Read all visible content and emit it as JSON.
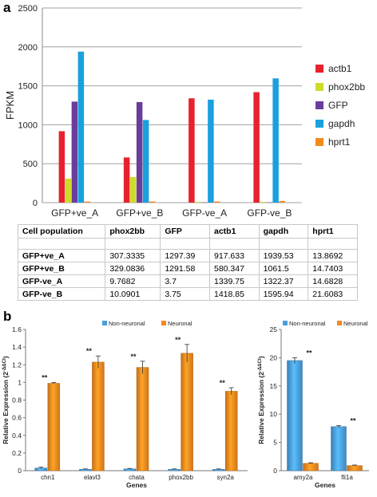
{
  "panel_a_label": "a",
  "panel_b_label": "b",
  "table": {
    "headers": [
      "Cell population",
      "phox2bb",
      "GFP",
      "actb1",
      "gapdh",
      "hprt1"
    ],
    "rows": [
      [
        "GFP+ve_A",
        "307.3335",
        "1297.39",
        "917.633",
        "1939.53",
        "13.8692"
      ],
      [
        "GFP+ve_B",
        "329.0836",
        "1291.58",
        "580.347",
        "1061.5",
        "14.7403"
      ],
      [
        "GFP-ve_A",
        "9.7682",
        "3.7",
        "1339.75",
        "1322.37",
        "14.6828"
      ],
      [
        "GFP-ve_B",
        "10.0901",
        "3.75",
        "1418.85",
        "1595.94",
        "21.6083"
      ]
    ]
  },
  "colors": {
    "actb1": "#e8212e",
    "phox2bb": "#cddc2a",
    "GFP": "#6a3d9a",
    "gapdh": "#1aa0dc",
    "hprt1": "#f5891f",
    "non_neuronal": "#4a9ee0",
    "neuronal": "#f5891f"
  },
  "chart_data": [
    {
      "type": "bar",
      "categories": [
        "GFP+ve_A",
        "GFP+ve_B",
        "GFP-ve_A",
        "GFP-ve_B"
      ],
      "series": [
        {
          "name": "actb1",
          "values": [
            917.633,
            580.347,
            1339.75,
            1418.85
          ]
        },
        {
          "name": "phox2bb",
          "values": [
            307.3335,
            329.0836,
            9.7682,
            10.0901
          ]
        },
        {
          "name": "GFP",
          "values": [
            1297.39,
            1291.58,
            3.7,
            3.75
          ]
        },
        {
          "name": "gapdh",
          "values": [
            1939.53,
            1061.5,
            1322.37,
            1595.94
          ]
        },
        {
          "name": "hprt1",
          "values": [
            13.8692,
            14.7403,
            14.6828,
            21.6083
          ]
        }
      ],
      "bar_order": [
        "actb1",
        "phox2bb",
        "GFP",
        "gapdh",
        "hprt1"
      ],
      "ylabel": "FPKM",
      "ylim": [
        0,
        2500
      ],
      "yticks": [
        "0",
        "500",
        "1000",
        "1500",
        "2000",
        "2500"
      ],
      "legend": [
        "actb1",
        "phox2bb",
        "GFP",
        "gapdh",
        "hprt1"
      ],
      "legend_position": "right",
      "grid": true
    },
    {
      "type": "bar",
      "categories": [
        "chn1",
        "elavl3",
        "chata",
        "phox2bb",
        "syn2a"
      ],
      "series": [
        {
          "name": "Non-neuronal",
          "values": [
            0.03,
            0.015,
            0.02,
            0.015,
            0.015
          ],
          "errors": [
            0.01,
            0.005,
            0.005,
            0.005,
            0.005
          ]
        },
        {
          "name": "Neuronal",
          "values": [
            0.99,
            1.23,
            1.17,
            1.33,
            0.9
          ],
          "errors": [
            0.01,
            0.07,
            0.07,
            0.1,
            0.04
          ]
        }
      ],
      "significance": [
        "**",
        "**",
        "**",
        "**",
        "**"
      ],
      "xlabel": "Genes",
      "ylabel": "Relative Expression (2",
      "ylabel_superscript": "-ΔΔCt",
      "ylabel_close": ")",
      "ylim": [
        0,
        1.6
      ],
      "yticks": [
        "0",
        "0.2",
        "0.4",
        "0.6",
        "0.8",
        "1",
        "1.2",
        "1.4",
        "1.6"
      ],
      "legend_position": "top"
    },
    {
      "type": "bar",
      "categories": [
        "amy2a",
        "fli1a"
      ],
      "series": [
        {
          "name": "Non-neuronal",
          "values": [
            19.5,
            7.8
          ],
          "errors": [
            0.5,
            0.2
          ]
        },
        {
          "name": "Neuronal",
          "values": [
            1.3,
            0.9
          ],
          "errors": [
            0.1,
            0.1
          ]
        }
      ],
      "significance": [
        "**",
        "**"
      ],
      "xlabel": "Genes",
      "ylabel": "Relative Expression (2",
      "ylabel_superscript": "-ΔΔCt",
      "ylabel_close": ")",
      "ylim": [
        0,
        25
      ],
      "yticks": [
        "0",
        "5",
        "10",
        "15",
        "20",
        "25"
      ],
      "legend_position": "top"
    }
  ]
}
